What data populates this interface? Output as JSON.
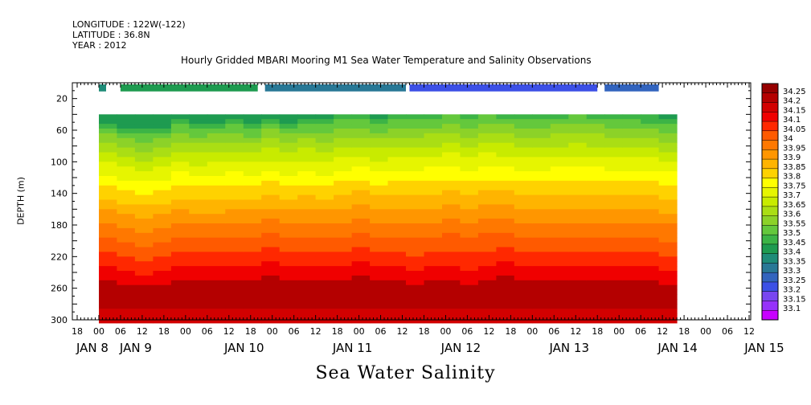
{
  "header": {
    "longitude": "LONGITUDE : 122W(-122)",
    "latitude": "LATITUDE : 36.8N",
    "year": "YEAR : 2012",
    "title": "Hourly Gridded MBARI Mooring M1 Sea Water Temperature and Salinity Observations"
  },
  "footer": {
    "variable_title": "Sea Water Salinity"
  },
  "chart_data": {
    "type": "heatmap",
    "title": "Hourly Gridded MBARI Mooring M1 Sea Water Temperature and Salinity Observations",
    "subtitle": "Sea Water Salinity",
    "xlabel": "",
    "ylabel": "DEPTH (m)",
    "x_hour_ticks": [
      "18",
      "00",
      "06",
      "12",
      "18",
      "00",
      "06",
      "12",
      "18",
      "00",
      "06",
      "12",
      "18",
      "00",
      "06",
      "12",
      "18",
      "00",
      "06",
      "12",
      "18",
      "00",
      "06",
      "12",
      "18",
      "00",
      "06",
      "12",
      "18",
      "00",
      "06",
      "12"
    ],
    "x_day_labels": [
      {
        "label": "JAN  8",
        "tick": 1
      },
      {
        "label": "JAN  9",
        "tick": 3
      },
      {
        "label": "JAN 10",
        "tick": 8
      },
      {
        "label": "JAN 11",
        "tick": 13
      },
      {
        "label": "JAN 12",
        "tick": 18
      },
      {
        "label": "JAN 13",
        "tick": 23
      },
      {
        "label": "JAN 14",
        "tick": 28
      },
      {
        "label": "JAN 15",
        "tick": 32
      }
    ],
    "y_ticks": [
      20,
      60,
      100,
      140,
      180,
      220,
      260,
      300
    ],
    "ylim": [
      300,
      0
    ],
    "depth_range_with_data": [
      40,
      300
    ],
    "colorbar_levels": [
      "34.25",
      "34.2",
      "34.15",
      "34.1",
      "34.05",
      "34",
      "33.95",
      "33.9",
      "33.85",
      "33.8",
      "33.75",
      "33.7",
      "33.65",
      "33.6",
      "33.55",
      "33.5",
      "33.45",
      "33.4",
      "33.35",
      "33.3",
      "33.25",
      "33.2",
      "33.15",
      "33.1"
    ],
    "colorbar_colors": [
      "#960000",
      "#b40000",
      "#d20000",
      "#f00000",
      "#ff2800",
      "#ff5a00",
      "#ff7800",
      "#ff9600",
      "#ffb400",
      "#ffd200",
      "#ffff00",
      "#e6f500",
      "#c8eb00",
      "#aade14",
      "#8cd228",
      "#64c83c",
      "#3cb446",
      "#1e9b50",
      "#1e8c78",
      "#287896",
      "#3264be",
      "#3c50e6",
      "#7846f0",
      "#9632fa",
      "#c800ff"
    ],
    "surface_bar_segments": [
      {
        "start": 0,
        "end": 2,
        "salinity": 33.35
      },
      {
        "start": 6,
        "end": 44,
        "salinity": 33.4
      },
      {
        "start": 46,
        "end": 85,
        "salinity": 33.3
      },
      {
        "start": 86,
        "end": 138,
        "salinity": 33.2
      },
      {
        "start": 140,
        "end": 155,
        "salinity": 33.25
      }
    ],
    "profile_columns_hours": 5,
    "time_start": "JAN 8 00",
    "time_end": "JAN 15 12",
    "series": [
      {
        "x_hour": 0,
        "d_lowS": 50,
        "d_high": 250
      },
      {
        "x_hour": 5,
        "d_lowS": 55,
        "d_high": 255
      },
      {
        "x_hour": 10,
        "d_lowS": 60,
        "d_high": 258
      },
      {
        "x_hour": 15,
        "d_lowS": 55,
        "d_high": 255
      },
      {
        "x_hour": 20,
        "d_lowS": 48,
        "d_high": 250
      },
      {
        "x_hour": 25,
        "d_lowS": 52,
        "d_high": 250
      },
      {
        "x_hour": 30,
        "d_lowS": 50,
        "d_high": 252
      },
      {
        "x_hour": 35,
        "d_lowS": 48,
        "d_high": 250
      },
      {
        "x_hour": 40,
        "d_lowS": 52,
        "d_high": 248
      },
      {
        "x_hour": 45,
        "d_lowS": 45,
        "d_high": 245
      },
      {
        "x_hour": 50,
        "d_lowS": 50,
        "d_high": 248
      },
      {
        "x_hour": 55,
        "d_lowS": 45,
        "d_high": 250
      },
      {
        "x_hour": 60,
        "d_lowS": 48,
        "d_high": 252
      },
      {
        "x_hour": 65,
        "d_lowS": 42,
        "d_high": 250
      },
      {
        "x_hour": 70,
        "d_lowS": 40,
        "d_high": 245
      },
      {
        "x_hour": 75,
        "d_lowS": 45,
        "d_high": 248
      },
      {
        "x_hour": 80,
        "d_lowS": 42,
        "d_high": 250
      },
      {
        "x_hour": 85,
        "d_lowS": 40,
        "d_high": 255
      },
      {
        "x_hour": 90,
        "d_lowS": 38,
        "d_high": 252
      },
      {
        "x_hour": 95,
        "d_lowS": 35,
        "d_high": 250
      },
      {
        "x_hour": 100,
        "d_lowS": 38,
        "d_high": 255
      },
      {
        "x_hour": 105,
        "d_lowS": 35,
        "d_high": 250
      },
      {
        "x_hour": 110,
        "d_lowS": 38,
        "d_high": 245
      },
      {
        "x_hour": 115,
        "d_lowS": 40,
        "d_high": 250
      },
      {
        "x_hour": 120,
        "d_lowS": 42,
        "d_high": 248
      },
      {
        "x_hour": 125,
        "d_lowS": 38,
        "d_high": 250
      },
      {
        "x_hour": 130,
        "d_lowS": 35,
        "d_high": 252
      },
      {
        "x_hour": 135,
        "d_lowS": 38,
        "d_high": 250
      },
      {
        "x_hour": 140,
        "d_lowS": 42,
        "d_high": 248
      },
      {
        "x_hour": 145,
        "d_lowS": 40,
        "d_high": 250
      },
      {
        "x_hour": 150,
        "d_lowS": 42,
        "d_high": 252
      },
      {
        "x_hour": 155,
        "d_lowS": 45,
        "d_high": 255
      }
    ]
  }
}
